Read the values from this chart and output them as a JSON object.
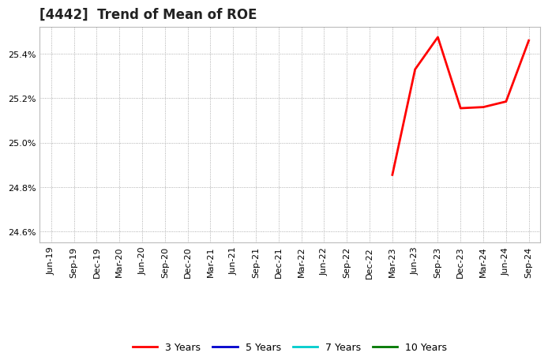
{
  "title": "[4442]  Trend of Mean of ROE",
  "x_labels": [
    "Jun-19",
    "Sep-19",
    "Dec-19",
    "Mar-20",
    "Jun-20",
    "Sep-20",
    "Dec-20",
    "Mar-21",
    "Jun-21",
    "Sep-21",
    "Dec-21",
    "Mar-22",
    "Jun-22",
    "Sep-22",
    "Dec-22",
    "Mar-23",
    "Jun-23",
    "Sep-23",
    "Dec-23",
    "Mar-24",
    "Jun-24",
    "Sep-24"
  ],
  "series_3y": {
    "label": "3 Years",
    "color": "#ff0000",
    "data_keys": [
      "Mar-23",
      "Jun-23",
      "Sep-23",
      "Dec-23",
      "Mar-24",
      "Jun-24",
      "Sep-24"
    ],
    "data_vals": [
      24.855,
      25.33,
      25.475,
      25.155,
      25.16,
      25.185,
      25.46
    ]
  },
  "series_5y": {
    "label": "5 Years",
    "color": "#0000cc"
  },
  "series_7y": {
    "label": "7 Years",
    "color": "#00cccc"
  },
  "series_10y": {
    "label": "10 Years",
    "color": "#007700"
  },
  "ylim": [
    24.55,
    25.52
  ],
  "yticks": [
    24.6,
    24.8,
    25.0,
    25.2,
    25.4
  ],
  "background_color": "#ffffff",
  "plot_bg_color": "#ffffff",
  "grid_color": "#999999",
  "title_fontsize": 12,
  "tick_fontsize": 8,
  "legend_fontsize": 9,
  "line_width": 2.0
}
